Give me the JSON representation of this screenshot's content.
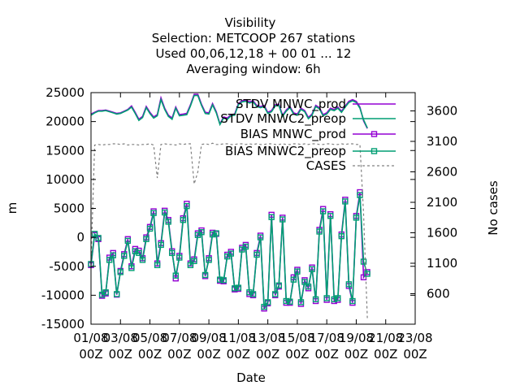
{
  "chart_data": {
    "type": "line",
    "title_lines": [
      "Visibility",
      "Selection: METCOOP    267 stations",
      "Used  00,06,12,18 + 00 01 ... 12",
      "Averaging window:  6h"
    ],
    "xlabel": "Date",
    "ylabel": "m",
    "y2label": "No cases",
    "ylim": [
      -15000,
      25000
    ],
    "y2lim": [
      100,
      3900
    ],
    "yticks": [
      "-15000",
      "-10000",
      "-5000",
      "0",
      "5000",
      "10000",
      "15000",
      "20000",
      "25000"
    ],
    "y2ticks": [
      "600",
      "1100",
      "1600",
      "2100",
      "2600",
      "3100",
      "3600"
    ],
    "xticks": [
      {
        "line1": "01/08",
        "line2": "00Z"
      },
      {
        "line1": "03/08",
        "line2": "00Z"
      },
      {
        "line1": "05/08",
        "line2": "00Z"
      },
      {
        "line1": "07/08",
        "line2": "00Z"
      },
      {
        "line1": "09/08",
        "line2": "00Z"
      },
      {
        "line1": "11/08",
        "line2": "00Z"
      },
      {
        "line1": "13/08",
        "line2": "00Z"
      },
      {
        "line1": "15/08",
        "line2": "00Z"
      },
      {
        "line1": "17/08",
        "line2": "00Z"
      },
      {
        "line1": "19/08",
        "line2": "00Z"
      },
      {
        "line1": "21/08",
        "line2": "00Z"
      },
      {
        "line1": "23/08",
        "line2": "00Z"
      }
    ],
    "grid": false,
    "legend_position": "top-right",
    "x_start": "01/08 00Z",
    "x_step": "6h",
    "series": [
      {
        "name": "STDV MNWC_prod",
        "color": "#9400d3",
        "marker": "none",
        "axis": "y1",
        "values": [
          21300,
          21600,
          21900,
          21900,
          22000,
          21800,
          21600,
          21400,
          21500,
          21800,
          22100,
          22700,
          21600,
          20400,
          20900,
          22600,
          21600,
          20800,
          21200,
          24100,
          22300,
          21100,
          20600,
          22500,
          21200,
          21300,
          21400,
          22900,
          24700,
          24700,
          23000,
          21600,
          21500,
          23100,
          21700,
          19600,
          20800,
          20600,
          21200,
          21300,
          23100,
          23600,
          23700,
          23400,
          23600,
          22800,
          22600,
          22800,
          21600,
          21900,
          22900,
          23000,
          21100,
          22000,
          22600,
          21500,
          21300,
          22300,
          21900,
          20700,
          21300,
          22800,
          22400,
          21200,
          21500,
          22300,
          22100,
          22500,
          21800,
          22700,
          23500,
          23800,
          23500,
          22500,
          20100,
          18800
        ]
      },
      {
        "name": "STDV MNWC2_preop",
        "color": "#009e73",
        "marker": "none",
        "axis": "y1",
        "values": [
          21100,
          21500,
          21800,
          21800,
          21900,
          21700,
          21500,
          21300,
          21400,
          21700,
          22000,
          22500,
          21400,
          20200,
          20700,
          22400,
          21400,
          20600,
          21000,
          23800,
          22100,
          20900,
          20400,
          22300,
          21000,
          21100,
          21200,
          22700,
          24500,
          24500,
          22800,
          21400,
          21300,
          22900,
          21500,
          19500,
          20600,
          20400,
          21000,
          21100,
          22900,
          23400,
          23500,
          23200,
          23400,
          22600,
          22400,
          22600,
          21400,
          21700,
          22700,
          22800,
          20900,
          21800,
          22400,
          21300,
          21100,
          22100,
          21700,
          20500,
          21100,
          22600,
          22200,
          21000,
          21300,
          22100,
          21900,
          22300,
          21600,
          22500,
          23300,
          23600,
          23300,
          22300,
          20300,
          18900
        ]
      },
      {
        "name": "BIAS MNWC_prod",
        "color": "#9400d3",
        "marker": "square",
        "axis": "y1",
        "values": [
          -4800,
          400,
          -300,
          -10100,
          -9700,
          -3500,
          -2700,
          -9900,
          -5800,
          -2900,
          -300,
          -5000,
          -2000,
          -2300,
          -3600,
          0,
          1800,
          4500,
          -4500,
          -1000,
          4600,
          3000,
          -2400,
          -7100,
          -3200,
          3300,
          5800,
          -4500,
          -3800,
          700,
          1200,
          -6700,
          -3600,
          800,
          600,
          -7500,
          -7600,
          -3000,
          -2500,
          -9000,
          -8900,
          -1800,
          -1300,
          -9800,
          -10000,
          -2700,
          300,
          -12300,
          -11400,
          3900,
          -10000,
          -8500,
          3400,
          -11300,
          -11300,
          -6900,
          -5600,
          -11500,
          -7400,
          -8800,
          -5200,
          -11000,
          1300,
          4900,
          -10800,
          4000,
          -11000,
          -10800,
          500,
          6500,
          -8400,
          -11300,
          3700,
          7800,
          -6900,
          -6000
        ]
      },
      {
        "name": "BIAS MNWC2_preop",
        "color": "#009e73",
        "marker": "square",
        "axis": "y1",
        "values": [
          -4600,
          600,
          -100,
          -9900,
          -9500,
          -3900,
          -3100,
          -9800,
          -6000,
          -3200,
          -600,
          -5300,
          -2400,
          -2700,
          -3900,
          -300,
          1500,
          4200,
          -4800,
          -1300,
          4300,
          2700,
          -2700,
          -6600,
          -3500,
          3000,
          5400,
          -4800,
          -4100,
          400,
          900,
          -6500,
          -3900,
          500,
          700,
          -7300,
          -7400,
          -3300,
          -2800,
          -8800,
          -8700,
          -2100,
          -1600,
          -9500,
          -9800,
          -3000,
          0,
          -12000,
          -11200,
          3500,
          -9800,
          -8300,
          3100,
          -11000,
          -11100,
          -7300,
          -5900,
          -11200,
          -7700,
          -8500,
          -5500,
          -10700,
          1000,
          4500,
          -10500,
          3700,
          -10700,
          -10500,
          200,
          6200,
          -8100,
          -11000,
          3400,
          7300,
          -4200,
          -6300
        ]
      },
      {
        "name": "CASES",
        "color": "#808080",
        "marker": "none",
        "dash": true,
        "axis": "y2",
        "values": [
          1100,
          3040,
          3050,
          3040,
          3050,
          3050,
          3060,
          3060,
          3050,
          3060,
          3040,
          3050,
          3050,
          3040,
          3050,
          3050,
          3060,
          3040,
          2500,
          3050,
          3060,
          3050,
          3050,
          3040,
          3060,
          3050,
          3060,
          3060,
          2400,
          2600,
          3050,
          3060,
          3050,
          3070,
          3050,
          3050,
          3060,
          3060,
          3050,
          3050,
          3060,
          3060,
          3050,
          3060,
          3050,
          3060,
          3050,
          3050,
          3060,
          3060,
          3050,
          3050,
          3060,
          3050,
          3050,
          3060,
          3060,
          3050,
          3060,
          3050,
          3060,
          3060,
          3050,
          3050,
          3060,
          3060,
          3050,
          3050,
          3060,
          3050,
          3060,
          3060,
          3050,
          3050,
          1900,
          200
        ]
      }
    ],
    "legend": [
      {
        "text": "STDV MNWC_prod",
        "series": 0
      },
      {
        "text": "STDV MNWC2_preop",
        "series": 1
      },
      {
        "text": "BIAS MNWC_prod",
        "series": 2
      },
      {
        "text": "BIAS MNWC2_preop",
        "series": 3
      },
      {
        "text": "CASES",
        "series": 4
      }
    ]
  }
}
